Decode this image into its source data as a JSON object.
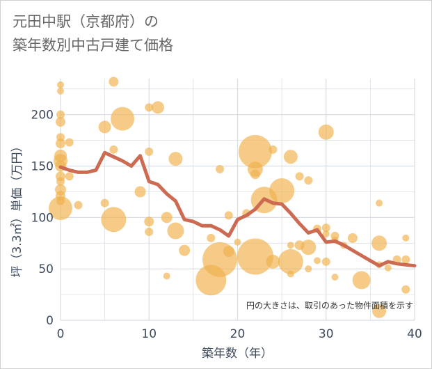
{
  "title_line1": "元田中駅（京都府）の",
  "title_line2": "築年数別中古戸建て価格",
  "chart_data": {
    "type": "scatter",
    "title": "元田中駅（京都府）の築年数別中古戸建て価格",
    "xlabel": "築年数（年）",
    "ylabel": "坪（3.3㎡）単価（万円）",
    "xlim": [
      0,
      40
    ],
    "ylim": [
      0,
      235
    ],
    "xticks": [
      0,
      10,
      20,
      30,
      40
    ],
    "yticks": [
      0,
      50,
      100,
      150,
      200
    ],
    "annotation": "円の大きさは、取引のあった物件面積を示す",
    "colors": {
      "bubble": "#f0b34e",
      "line": "#cd6a52",
      "grid": "#d8dde3",
      "axis_text": "#3d4a5c"
    },
    "scatter": [
      {
        "x": 0,
        "y": 229,
        "s": 5
      },
      {
        "x": 0,
        "y": 223,
        "s": 5
      },
      {
        "x": 0,
        "y": 200,
        "s": 6
      },
      {
        "x": 0,
        "y": 193,
        "s": 7
      },
      {
        "x": 0,
        "y": 178,
        "s": 6
      },
      {
        "x": 0,
        "y": 172,
        "s": 7
      },
      {
        "x": 0,
        "y": 160,
        "s": 9
      },
      {
        "x": 0,
        "y": 155,
        "s": 10
      },
      {
        "x": 0,
        "y": 150,
        "s": 8
      },
      {
        "x": 0,
        "y": 140,
        "s": 7
      },
      {
        "x": 0,
        "y": 135,
        "s": 6
      },
      {
        "x": 0,
        "y": 127,
        "s": 8
      },
      {
        "x": 0,
        "y": 121,
        "s": 7
      },
      {
        "x": 0,
        "y": 116,
        "s": 6
      },
      {
        "x": 0,
        "y": 109,
        "s": 17
      },
      {
        "x": 1,
        "y": 173,
        "s": 6
      },
      {
        "x": 1,
        "y": 140,
        "s": 6
      },
      {
        "x": 2,
        "y": 112,
        "s": 6
      },
      {
        "x": 5,
        "y": 188,
        "s": 9
      },
      {
        "x": 5,
        "y": 114,
        "s": 6
      },
      {
        "x": 6,
        "y": 232,
        "s": 7
      },
      {
        "x": 6,
        "y": 166,
        "s": 6
      },
      {
        "x": 6,
        "y": 98,
        "s": 18
      },
      {
        "x": 7,
        "y": 196,
        "s": 17
      },
      {
        "x": 9,
        "y": 125,
        "s": 8
      },
      {
        "x": 10,
        "y": 207,
        "s": 6
      },
      {
        "x": 10,
        "y": 164,
        "s": 6
      },
      {
        "x": 10,
        "y": 96,
        "s": 7
      },
      {
        "x": 10,
        "y": 86,
        "s": 6
      },
      {
        "x": 11,
        "y": 207,
        "s": 9
      },
      {
        "x": 12,
        "y": 100,
        "s": 8
      },
      {
        "x": 12,
        "y": 43,
        "s": 5
      },
      {
        "x": 13,
        "y": 157,
        "s": 10
      },
      {
        "x": 13,
        "y": 87,
        "s": 12
      },
      {
        "x": 14,
        "y": 68,
        "s": 8
      },
      {
        "x": 17,
        "y": 80,
        "s": 6
      },
      {
        "x": 17,
        "y": 39,
        "s": 22
      },
      {
        "x": 18,
        "y": 147,
        "s": 6
      },
      {
        "x": 18,
        "y": 59,
        "s": 25
      },
      {
        "x": 19,
        "y": 102,
        "s": 6
      },
      {
        "x": 19,
        "y": 67,
        "s": 8
      },
      {
        "x": 20,
        "y": 76,
        "s": 5
      },
      {
        "x": 21,
        "y": 104,
        "s": 6
      },
      {
        "x": 22,
        "y": 164,
        "s": 24
      },
      {
        "x": 22,
        "y": 147,
        "s": 11
      },
      {
        "x": 22,
        "y": 142,
        "s": 7
      },
      {
        "x": 22,
        "y": 62,
        "s": 26
      },
      {
        "x": 23,
        "y": 117,
        "s": 19
      },
      {
        "x": 24,
        "y": 166,
        "s": 6
      },
      {
        "x": 24,
        "y": 57,
        "s": 10
      },
      {
        "x": 25,
        "y": 126,
        "s": 18
      },
      {
        "x": 26,
        "y": 159,
        "s": 10
      },
      {
        "x": 26,
        "y": 73,
        "s": 5
      },
      {
        "x": 26,
        "y": 57,
        "s": 18
      },
      {
        "x": 26,
        "y": 45,
        "s": 5
      },
      {
        "x": 27,
        "y": 140,
        "s": 6
      },
      {
        "x": 27,
        "y": 73,
        "s": 7
      },
      {
        "x": 28,
        "y": 136,
        "s": 6
      },
      {
        "x": 28,
        "y": 71,
        "s": 11
      },
      {
        "x": 28,
        "y": 50,
        "s": 5
      },
      {
        "x": 29,
        "y": 89,
        "s": 6
      },
      {
        "x": 29,
        "y": 58,
        "s": 5
      },
      {
        "x": 30,
        "y": 183,
        "s": 11
      },
      {
        "x": 30,
        "y": 90,
        "s": 6
      },
      {
        "x": 30,
        "y": 84,
        "s": 5
      },
      {
        "x": 30,
        "y": 57,
        "s": 6
      },
      {
        "x": 31,
        "y": 82,
        "s": 6
      },
      {
        "x": 31,
        "y": 78,
        "s": 5
      },
      {
        "x": 31,
        "y": 42,
        "s": 5
      },
      {
        "x": 32,
        "y": 73,
        "s": 5
      },
      {
        "x": 33,
        "y": 80,
        "s": 7
      },
      {
        "x": 34,
        "y": 39,
        "s": 13
      },
      {
        "x": 36,
        "y": 114,
        "s": 5
      },
      {
        "x": 36,
        "y": 75,
        "s": 11
      },
      {
        "x": 36,
        "y": 54,
        "s": 5
      },
      {
        "x": 36,
        "y": 9,
        "s": 10
      },
      {
        "x": 37,
        "y": 51,
        "s": 5
      },
      {
        "x": 38,
        "y": 59,
        "s": 6
      },
      {
        "x": 39,
        "y": 80,
        "s": 5
      },
      {
        "x": 39,
        "y": 59,
        "s": 6
      },
      {
        "x": 39,
        "y": 30,
        "s": 6
      }
    ],
    "line": {
      "x": [
        0,
        1,
        2,
        3,
        4,
        5,
        6,
        7,
        8,
        9,
        10,
        11,
        12,
        13,
        14,
        15,
        16,
        17,
        18,
        19,
        20,
        21,
        22,
        23,
        24,
        25,
        26,
        27,
        28,
        29,
        30,
        31,
        32,
        33,
        34,
        35,
        36,
        37,
        38,
        39,
        40
      ],
      "y": [
        149,
        146,
        144,
        144,
        146,
        163,
        159,
        155,
        150,
        160,
        135,
        132,
        123,
        116,
        98,
        96,
        92,
        92,
        88,
        82,
        98,
        102,
        108,
        118,
        114,
        113,
        104,
        94,
        85,
        88,
        76,
        77,
        73,
        68,
        63,
        58,
        53,
        57,
        55,
        54,
        53
      ]
    }
  }
}
